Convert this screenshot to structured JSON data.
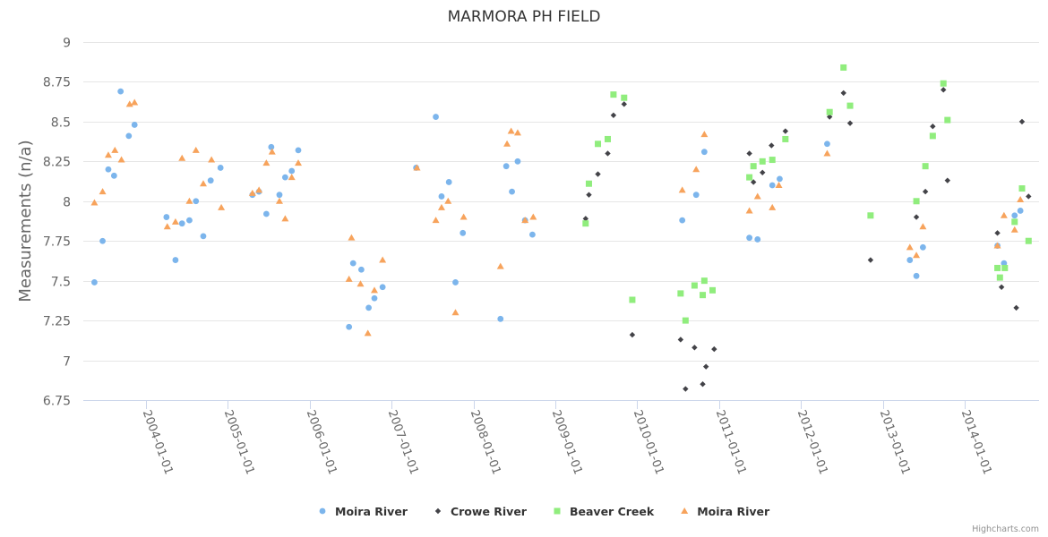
{
  "chart_data": {
    "type": "scatter",
    "title": "MARMORA PH FIELD",
    "xlabel": "",
    "ylabel": "Measurements (n/a)",
    "ylim": [
      6.75,
      9
    ],
    "yticks": [
      "6.75",
      "7",
      "7.25",
      "7.5",
      "7.75",
      "8",
      "8.25",
      "8.5",
      "8.75",
      "9"
    ],
    "ytick_values": [
      6.75,
      7,
      7.25,
      7.5,
      7.75,
      8,
      8.25,
      8.5,
      8.75,
      9
    ],
    "xticks": [
      "2004-01-01",
      "2005-01-01",
      "2006-01-01",
      "2007-01-01",
      "2008-01-01",
      "2009-01-01",
      "2010-01-01",
      "2011-01-01",
      "2012-01-01",
      "2013-01-01",
      "2014-01-01"
    ],
    "xtick_values": [
      2004,
      2005,
      2006,
      2007,
      2008,
      2009,
      2010,
      2011,
      2012,
      2013,
      2014
    ],
    "xlim": [
      2003.23,
      2014.9
    ],
    "grid": true,
    "legend": "bottom-center",
    "credits": "Highcharts.com",
    "series": [
      {
        "name": "Moira River",
        "marker": "circle",
        "color": "#7cb5ec",
        "points": [
          [
            2003.37,
            7.49
          ],
          [
            2003.47,
            7.75
          ],
          [
            2003.54,
            8.2
          ],
          [
            2003.61,
            8.16
          ],
          [
            2003.69,
            8.69
          ],
          [
            2003.79,
            8.41
          ],
          [
            2003.86,
            8.48
          ],
          [
            2004.25,
            7.9
          ],
          [
            2004.36,
            7.63
          ],
          [
            2004.44,
            7.86
          ],
          [
            2004.53,
            7.88
          ],
          [
            2004.61,
            8.0
          ],
          [
            2004.7,
            7.78
          ],
          [
            2004.79,
            8.13
          ],
          [
            2004.91,
            8.21
          ],
          [
            2005.3,
            8.04
          ],
          [
            2005.38,
            8.06
          ],
          [
            2005.47,
            7.92
          ],
          [
            2005.53,
            8.34
          ],
          [
            2005.63,
            8.04
          ],
          [
            2005.7,
            8.15
          ],
          [
            2005.78,
            8.19
          ],
          [
            2005.86,
            8.32
          ],
          [
            2006.48,
            7.21
          ],
          [
            2006.53,
            7.61
          ],
          [
            2006.63,
            7.57
          ],
          [
            2006.72,
            7.33
          ],
          [
            2006.79,
            7.39
          ],
          [
            2006.89,
            7.46
          ],
          [
            2007.3,
            8.21
          ],
          [
            2007.54,
            8.53
          ],
          [
            2007.61,
            8.03
          ],
          [
            2007.7,
            8.12
          ],
          [
            2007.78,
            7.49
          ],
          [
            2007.87,
            7.8
          ],
          [
            2008.33,
            7.26
          ],
          [
            2008.4,
            8.22
          ],
          [
            2008.47,
            8.06
          ],
          [
            2008.54,
            8.25
          ],
          [
            2008.63,
            7.88
          ],
          [
            2008.72,
            7.79
          ],
          [
            2010.55,
            7.88
          ],
          [
            2010.72,
            8.04
          ],
          [
            2010.82,
            8.31
          ],
          [
            2011.37,
            7.77
          ],
          [
            2011.47,
            7.76
          ],
          [
            2011.65,
            8.1
          ],
          [
            2011.74,
            8.14
          ],
          [
            2012.32,
            8.36
          ],
          [
            2013.33,
            7.63
          ],
          [
            2013.41,
            7.53
          ],
          [
            2013.49,
            7.71
          ],
          [
            2014.4,
            7.72
          ],
          [
            2014.48,
            7.61
          ],
          [
            2014.61,
            7.91
          ],
          [
            2014.68,
            7.94
          ]
        ]
      },
      {
        "name": "Crowe River",
        "marker": "diamond",
        "color": "#434348",
        "points": [
          [
            2009.37,
            7.89
          ],
          [
            2009.41,
            8.04
          ],
          [
            2009.52,
            8.17
          ],
          [
            2009.64,
            8.3
          ],
          [
            2009.71,
            8.54
          ],
          [
            2009.84,
            8.61
          ],
          [
            2009.94,
            7.16
          ],
          [
            2010.53,
            7.13
          ],
          [
            2010.59,
            6.82
          ],
          [
            2010.7,
            7.08
          ],
          [
            2010.8,
            6.85
          ],
          [
            2010.84,
            6.96
          ],
          [
            2010.94,
            7.07
          ],
          [
            2011.37,
            8.3
          ],
          [
            2011.42,
            8.12
          ],
          [
            2011.53,
            8.18
          ],
          [
            2011.64,
            8.35
          ],
          [
            2011.81,
            8.44
          ],
          [
            2012.35,
            8.53
          ],
          [
            2012.52,
            8.68
          ],
          [
            2012.6,
            8.49
          ],
          [
            2012.85,
            7.63
          ],
          [
            2013.41,
            7.9
          ],
          [
            2013.52,
            8.06
          ],
          [
            2013.61,
            8.47
          ],
          [
            2013.74,
            8.7
          ],
          [
            2013.79,
            8.13
          ],
          [
            2014.4,
            7.8
          ],
          [
            2014.45,
            7.46
          ],
          [
            2014.63,
            7.33
          ],
          [
            2014.7,
            8.5
          ],
          [
            2014.78,
            8.03
          ]
        ]
      },
      {
        "name": "Beaver Creek",
        "marker": "square",
        "color": "#90ed7d",
        "points": [
          [
            2009.37,
            7.86
          ],
          [
            2009.41,
            8.11
          ],
          [
            2009.52,
            8.36
          ],
          [
            2009.64,
            8.39
          ],
          [
            2009.71,
            8.67
          ],
          [
            2009.84,
            8.65
          ],
          [
            2009.94,
            7.38
          ],
          [
            2010.53,
            7.42
          ],
          [
            2010.59,
            7.25
          ],
          [
            2010.7,
            7.47
          ],
          [
            2010.8,
            7.41
          ],
          [
            2010.82,
            7.5
          ],
          [
            2010.92,
            7.44
          ],
          [
            2011.37,
            8.15
          ],
          [
            2011.42,
            8.22
          ],
          [
            2011.53,
            8.25
          ],
          [
            2011.65,
            8.26
          ],
          [
            2011.81,
            8.39
          ],
          [
            2012.35,
            8.56
          ],
          [
            2012.52,
            8.84
          ],
          [
            2012.6,
            8.6
          ],
          [
            2012.85,
            7.91
          ],
          [
            2013.41,
            8.0
          ],
          [
            2013.52,
            8.22
          ],
          [
            2013.61,
            8.41
          ],
          [
            2013.74,
            8.74
          ],
          [
            2013.79,
            8.51
          ],
          [
            2014.4,
            7.58
          ],
          [
            2014.43,
            7.52
          ],
          [
            2014.49,
            7.58
          ],
          [
            2014.61,
            7.87
          ],
          [
            2014.7,
            8.08
          ],
          [
            2014.78,
            7.75
          ]
        ]
      },
      {
        "name": "Moira River",
        "marker": "triangle",
        "color": "#f7a35c",
        "points": [
          [
            2003.37,
            7.99
          ],
          [
            2003.47,
            8.06
          ],
          [
            2003.54,
            8.29
          ],
          [
            2003.62,
            8.32
          ],
          [
            2003.7,
            8.26
          ],
          [
            2003.8,
            8.61
          ],
          [
            2003.86,
            8.62
          ],
          [
            2004.26,
            7.84
          ],
          [
            2004.36,
            7.87
          ],
          [
            2004.44,
            8.27
          ],
          [
            2004.53,
            8.0
          ],
          [
            2004.61,
            8.32
          ],
          [
            2004.7,
            8.11
          ],
          [
            2004.8,
            8.26
          ],
          [
            2004.92,
            7.96
          ],
          [
            2005.3,
            8.05
          ],
          [
            2005.38,
            8.07
          ],
          [
            2005.47,
            8.24
          ],
          [
            2005.54,
            8.31
          ],
          [
            2005.63,
            8.0
          ],
          [
            2005.7,
            7.89
          ],
          [
            2005.78,
            8.15
          ],
          [
            2005.86,
            8.24
          ],
          [
            2006.48,
            7.51
          ],
          [
            2006.51,
            7.77
          ],
          [
            2006.62,
            7.48
          ],
          [
            2006.71,
            7.17
          ],
          [
            2006.79,
            7.44
          ],
          [
            2006.89,
            7.63
          ],
          [
            2007.31,
            8.21
          ],
          [
            2007.54,
            7.88
          ],
          [
            2007.61,
            7.96
          ],
          [
            2007.69,
            8.0
          ],
          [
            2007.78,
            7.3
          ],
          [
            2007.88,
            7.9
          ],
          [
            2008.33,
            7.59
          ],
          [
            2008.41,
            8.36
          ],
          [
            2008.46,
            8.44
          ],
          [
            2008.54,
            8.43
          ],
          [
            2008.63,
            7.88
          ],
          [
            2008.73,
            7.9
          ],
          [
            2010.55,
            8.07
          ],
          [
            2010.72,
            8.2
          ],
          [
            2010.82,
            8.42
          ],
          [
            2011.37,
            7.94
          ],
          [
            2011.47,
            8.03
          ],
          [
            2011.65,
            7.96
          ],
          [
            2011.73,
            8.1
          ],
          [
            2012.32,
            8.3
          ],
          [
            2013.33,
            7.71
          ],
          [
            2013.41,
            7.66
          ],
          [
            2013.49,
            7.84
          ],
          [
            2014.4,
            7.72
          ],
          [
            2014.48,
            7.91
          ],
          [
            2014.61,
            7.82
          ],
          [
            2014.68,
            8.01
          ]
        ]
      }
    ]
  }
}
